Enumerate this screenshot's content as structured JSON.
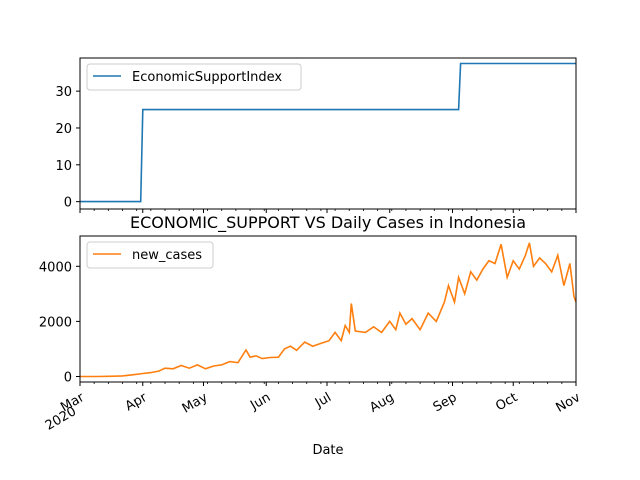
{
  "chart_data": [
    {
      "type": "line",
      "title": "",
      "xlabel": "",
      "ylabel": "",
      "ylim": [
        -2,
        39
      ],
      "yticks": [
        0,
        10,
        20,
        30
      ],
      "legend": "top-left",
      "series": [
        {
          "name": "EconomicSupportIndex",
          "color": "#1f77b4",
          "points": [
            [
              "2020-03-01",
              0
            ],
            [
              "2020-03-31",
              0
            ],
            [
              "2020-04-01",
              25
            ],
            [
              "2020-09-04",
              25
            ],
            [
              "2020-09-05",
              37.5
            ],
            [
              "2020-11-01",
              37.5
            ]
          ]
        }
      ]
    },
    {
      "type": "line",
      "title": "ECONOMIC_SUPPORT VS Daily Cases in Indonesia",
      "xlabel": "Date",
      "ylabel": "",
      "ylim": [
        -200,
        5100
      ],
      "yticks": [
        0,
        2000,
        4000
      ],
      "legend": "top-left",
      "x_ticks": [
        {
          "date": "2020-03-01",
          "label": "Mar",
          "sublabel": "2020"
        },
        {
          "date": "2020-04-01",
          "label": "Apr",
          "sublabel": ""
        },
        {
          "date": "2020-05-01",
          "label": "May",
          "sublabel": ""
        },
        {
          "date": "2020-06-01",
          "label": "Jun",
          "sublabel": ""
        },
        {
          "date": "2020-07-01",
          "label": "Jul",
          "sublabel": ""
        },
        {
          "date": "2020-08-01",
          "label": "Aug",
          "sublabel": ""
        },
        {
          "date": "2020-09-01",
          "label": "Sep",
          "sublabel": ""
        },
        {
          "date": "2020-10-01",
          "label": "Oct",
          "sublabel": ""
        },
        {
          "date": "2020-11-01",
          "label": "Nov",
          "sublabel": ""
        }
      ],
      "series": [
        {
          "name": "new_cases",
          "color": "#ff7f0e",
          "points": [
            [
              "2020-03-01",
              0
            ],
            [
              "2020-03-10",
              0
            ],
            [
              "2020-03-18",
              10
            ],
            [
              "2020-03-22",
              20
            ],
            [
              "2020-03-27",
              60
            ],
            [
              "2020-04-01",
              110
            ],
            [
              "2020-04-05",
              140
            ],
            [
              "2020-04-09",
              200
            ],
            [
              "2020-04-12",
              300
            ],
            [
              "2020-04-16",
              280
            ],
            [
              "2020-04-20",
              400
            ],
            [
              "2020-04-24",
              300
            ],
            [
              "2020-04-28",
              420
            ],
            [
              "2020-05-02",
              280
            ],
            [
              "2020-05-06",
              380
            ],
            [
              "2020-05-10",
              420
            ],
            [
              "2020-05-14",
              540
            ],
            [
              "2020-05-18",
              500
            ],
            [
              "2020-05-22",
              960
            ],
            [
              "2020-05-24",
              700
            ],
            [
              "2020-05-27",
              750
            ],
            [
              "2020-05-30",
              650
            ],
            [
              "2020-06-03",
              690
            ],
            [
              "2020-06-07",
              700
            ],
            [
              "2020-06-10",
              1000
            ],
            [
              "2020-06-13",
              1100
            ],
            [
              "2020-06-16",
              950
            ],
            [
              "2020-06-20",
              1250
            ],
            [
              "2020-06-24",
              1100
            ],
            [
              "2020-06-28",
              1200
            ],
            [
              "2020-07-02",
              1300
            ],
            [
              "2020-07-05",
              1600
            ],
            [
              "2020-07-08",
              1300
            ],
            [
              "2020-07-10",
              1850
            ],
            [
              "2020-07-12",
              1600
            ],
            [
              "2020-07-13",
              2650
            ],
            [
              "2020-07-15",
              1650
            ],
            [
              "2020-07-20",
              1600
            ],
            [
              "2020-07-24",
              1800
            ],
            [
              "2020-07-28",
              1600
            ],
            [
              "2020-08-01",
              2000
            ],
            [
              "2020-08-04",
              1700
            ],
            [
              "2020-08-06",
              2300
            ],
            [
              "2020-08-09",
              1900
            ],
            [
              "2020-08-12",
              2100
            ],
            [
              "2020-08-16",
              1700
            ],
            [
              "2020-08-20",
              2300
            ],
            [
              "2020-08-24",
              2000
            ],
            [
              "2020-08-28",
              2700
            ],
            [
              "2020-08-30",
              3300
            ],
            [
              "2020-09-02",
              2700
            ],
            [
              "2020-09-04",
              3600
            ],
            [
              "2020-09-07",
              3000
            ],
            [
              "2020-09-10",
              3800
            ],
            [
              "2020-09-13",
              3500
            ],
            [
              "2020-09-16",
              3900
            ],
            [
              "2020-09-19",
              4200
            ],
            [
              "2020-09-22",
              4100
            ],
            [
              "2020-09-25",
              4800
            ],
            [
              "2020-09-28",
              3600
            ],
            [
              "2020-10-01",
              4200
            ],
            [
              "2020-10-04",
              3900
            ],
            [
              "2020-10-07",
              4400
            ],
            [
              "2020-10-09",
              4850
            ],
            [
              "2020-10-11",
              4000
            ],
            [
              "2020-10-14",
              4300
            ],
            [
              "2020-10-17",
              4100
            ],
            [
              "2020-10-20",
              3800
            ],
            [
              "2020-10-23",
              4400
            ],
            [
              "2020-10-26",
              3300
            ],
            [
              "2020-10-29",
              4100
            ],
            [
              "2020-10-31",
              2900
            ],
            [
              "2020-11-01",
              2700
            ]
          ]
        }
      ]
    }
  ]
}
